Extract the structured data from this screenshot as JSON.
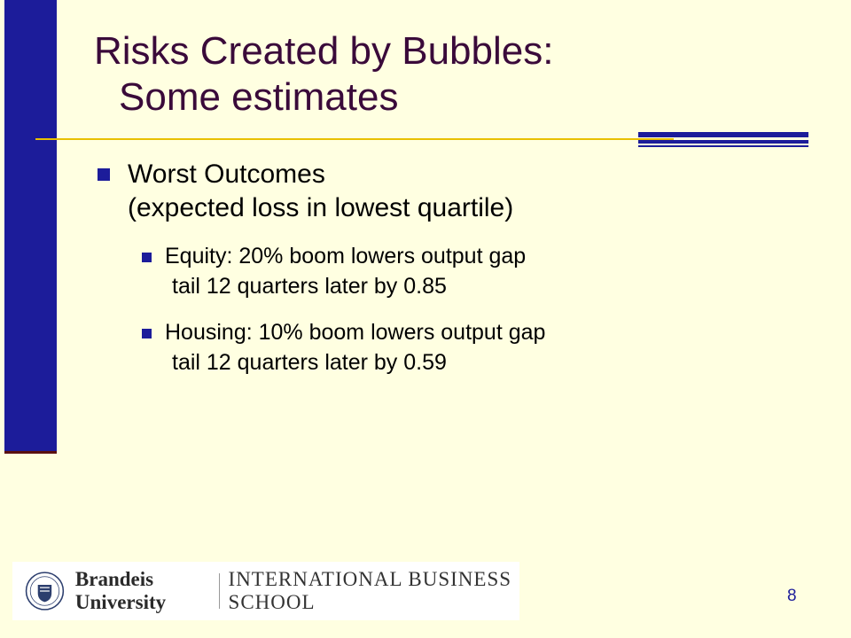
{
  "title": {
    "line1": "Risks Created by Bubbles:",
    "line2": "Some estimates"
  },
  "bullets": [
    {
      "text": "Worst Outcomes",
      "subtext": "(expected loss in lowest quartile)",
      "children": [
        {
          "line1": "Equity: 20% boom lowers output gap",
          "line2": "tail 12 quarters later by 0.85"
        },
        {
          "line1": "Housing: 10% boom lowers output gap",
          "line2": "tail 12 quarters later by 0.59"
        }
      ]
    }
  ],
  "footer": {
    "logo_name": "Brandeis University",
    "logo_school": "INTERNATIONAL BUSINESS SCHOOL",
    "page_number": "8"
  },
  "colors": {
    "background": "#FFFFE1",
    "accent_blue": "#1C1C9A",
    "title": "#3A0A3A",
    "gold_rule": "#E8C000"
  }
}
